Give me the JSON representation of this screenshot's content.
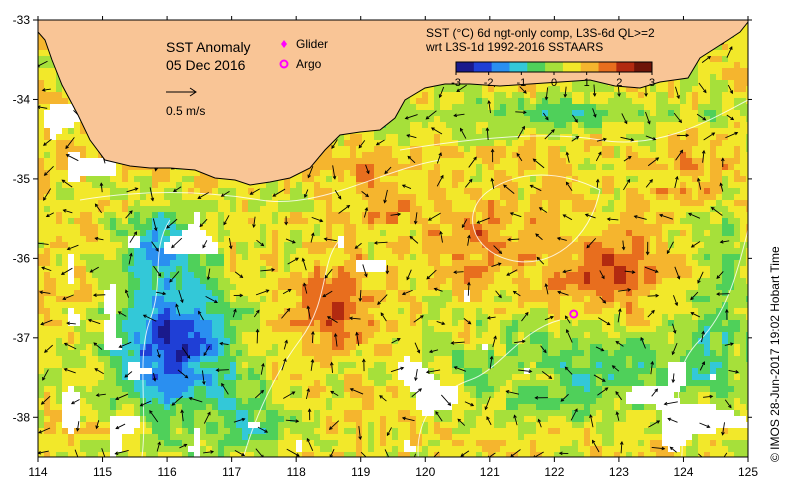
{
  "map": {
    "title": "SST Anomaly",
    "date": "05 Dec 2016",
    "velocity_scale": "0.5 m/s",
    "legend": [
      {
        "label": "Glider",
        "symbol": "diamond",
        "color": "#ff00ff"
      },
      {
        "label": "Argo",
        "symbol": "ring",
        "color": "#ff00ff"
      }
    ],
    "product_line1": "SST (°C) 6d ngt-only comp, L3S-6d QL>=2",
    "product_line2": "wrt L3S-1d 1992-2016 SSTAARS",
    "colorbar": {
      "min": -3,
      "max": 3,
      "ticks": [
        "-3",
        "-2",
        "-1",
        "0",
        "1",
        "2",
        "3"
      ],
      "colors": [
        "#1a1a8c",
        "#1f3fd6",
        "#2a8ff0",
        "#33c8d8",
        "#4fd05a",
        "#a6e03a",
        "#f2e82a",
        "#f5b52e",
        "#e86e1e",
        "#b22a10",
        "#6e1408"
      ]
    },
    "credit": "© IMOS 28-Jun-2017 19:02 Hobart Time",
    "x_ticks": [
      "114",
      "115",
      "116",
      "117",
      "118",
      "119",
      "120",
      "121",
      "122",
      "123",
      "124",
      "125"
    ],
    "y_ticks": [
      "-33",
      "-34",
      "-35",
      "-36",
      "-37",
      "-38"
    ],
    "lon_range": [
      114,
      125
    ],
    "lat_range": [
      -38.5,
      -33
    ],
    "argo_float": {
      "lon": 122.3,
      "lat": -36.7
    },
    "colors": {
      "land": "#f9c596",
      "coast": "#000000",
      "no_data": "#ffffff",
      "frame": "#000000",
      "contour": "#ffffff",
      "arrow": "#000000"
    }
  }
}
